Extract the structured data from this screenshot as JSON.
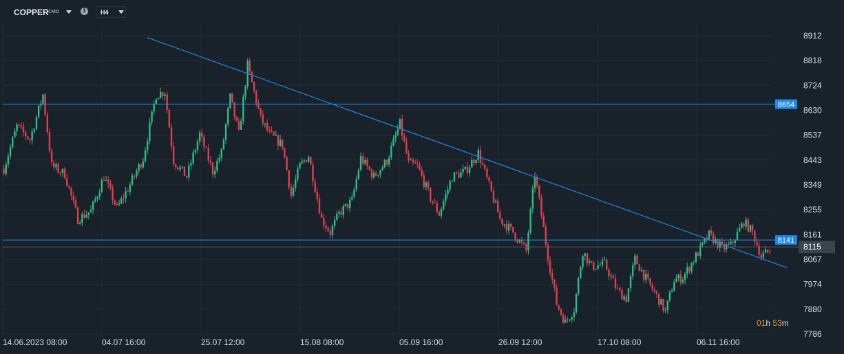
{
  "header": {
    "symbol": "COPPER",
    "symbol_tag": "CMD",
    "timeframe": "H4"
  },
  "countdown": {
    "hours": "01",
    "hours_unit": "h",
    "minutes": "53",
    "minutes_unit": "m"
  },
  "colors": {
    "background": "#19212a",
    "bull": "#2ebd85",
    "bear": "#e0404e",
    "line": "#1e88e5",
    "grid": "#222c36"
  },
  "chart_data": {
    "type": "candlestick",
    "instrument": "COPPER",
    "interval": "H4",
    "y_ticks": [
      8912,
      8818,
      8724,
      8630,
      8537,
      8443,
      8349,
      8255,
      8161,
      8067,
      7974,
      7880,
      7786
    ],
    "x_ticks": [
      "14.06.2023  08:00",
      "04.07  16:00",
      "25.07  12:00",
      "15.08  08:00",
      "05.09  16:00",
      "26.09  12:00",
      "17.10  08:00",
      "06.11  16:00"
    ],
    "ylim": [
      7786,
      8912
    ],
    "grid": false,
    "path_anchors": [
      [
        0,
        8410
      ],
      [
        6,
        8570
      ],
      [
        12,
        8520
      ],
      [
        18,
        8690
      ],
      [
        22,
        8420
      ],
      [
        28,
        8390
      ],
      [
        34,
        8220
      ],
      [
        40,
        8250
      ],
      [
        46,
        8380
      ],
      [
        52,
        8260
      ],
      [
        58,
        8350
      ],
      [
        64,
        8450
      ],
      [
        70,
        8690
      ],
      [
        74,
        8700
      ],
      [
        78,
        8440
      ],
      [
        84,
        8380
      ],
      [
        90,
        8540
      ],
      [
        96,
        8400
      ],
      [
        100,
        8470
      ],
      [
        104,
        8680
      ],
      [
        108,
        8540
      ],
      [
        112,
        8800
      ],
      [
        118,
        8600
      ],
      [
        122,
        8540
      ],
      [
        128,
        8500
      ],
      [
        132,
        8310
      ],
      [
        136,
        8420
      ],
      [
        140,
        8460
      ],
      [
        146,
        8220
      ],
      [
        150,
        8170
      ],
      [
        154,
        8240
      ],
      [
        160,
        8290
      ],
      [
        164,
        8450
      ],
      [
        170,
        8380
      ],
      [
        176,
        8440
      ],
      [
        182,
        8580
      ],
      [
        186,
        8430
      ],
      [
        190,
        8420
      ],
      [
        196,
        8300
      ],
      [
        200,
        8240
      ],
      [
        206,
        8380
      ],
      [
        212,
        8400
      ],
      [
        218,
        8470
      ],
      [
        224,
        8320
      ],
      [
        228,
        8220
      ],
      [
        234,
        8170
      ],
      [
        240,
        8100
      ],
      [
        244,
        8390
      ],
      [
        250,
        8080
      ],
      [
        254,
        7900
      ],
      [
        258,
        7830
      ],
      [
        262,
        7880
      ],
      [
        266,
        8100
      ],
      [
        270,
        8040
      ],
      [
        276,
        8050
      ],
      [
        282,
        7950
      ],
      [
        286,
        7920
      ],
      [
        290,
        8070
      ],
      [
        296,
        7980
      ],
      [
        300,
        7930
      ],
      [
        304,
        7870
      ],
      [
        308,
        7990
      ],
      [
        312,
        8000
      ],
      [
        318,
        8080
      ],
      [
        324,
        8160
      ],
      [
        330,
        8110
      ],
      [
        334,
        8120
      ],
      [
        340,
        8210
      ],
      [
        344,
        8170
      ],
      [
        348,
        8080
      ],
      [
        352,
        8100
      ]
    ],
    "candle_count": 353,
    "horizontal_levels": [
      {
        "value": 8654,
        "label": "8654"
      },
      {
        "value": 8141,
        "label": "8141"
      }
    ],
    "current_price": {
      "value": 8115,
      "label": "8115"
    },
    "trendline": {
      "start": {
        "index": 66,
        "value": 8905
      },
      "end": {
        "index": 360,
        "value": 8036
      }
    }
  }
}
